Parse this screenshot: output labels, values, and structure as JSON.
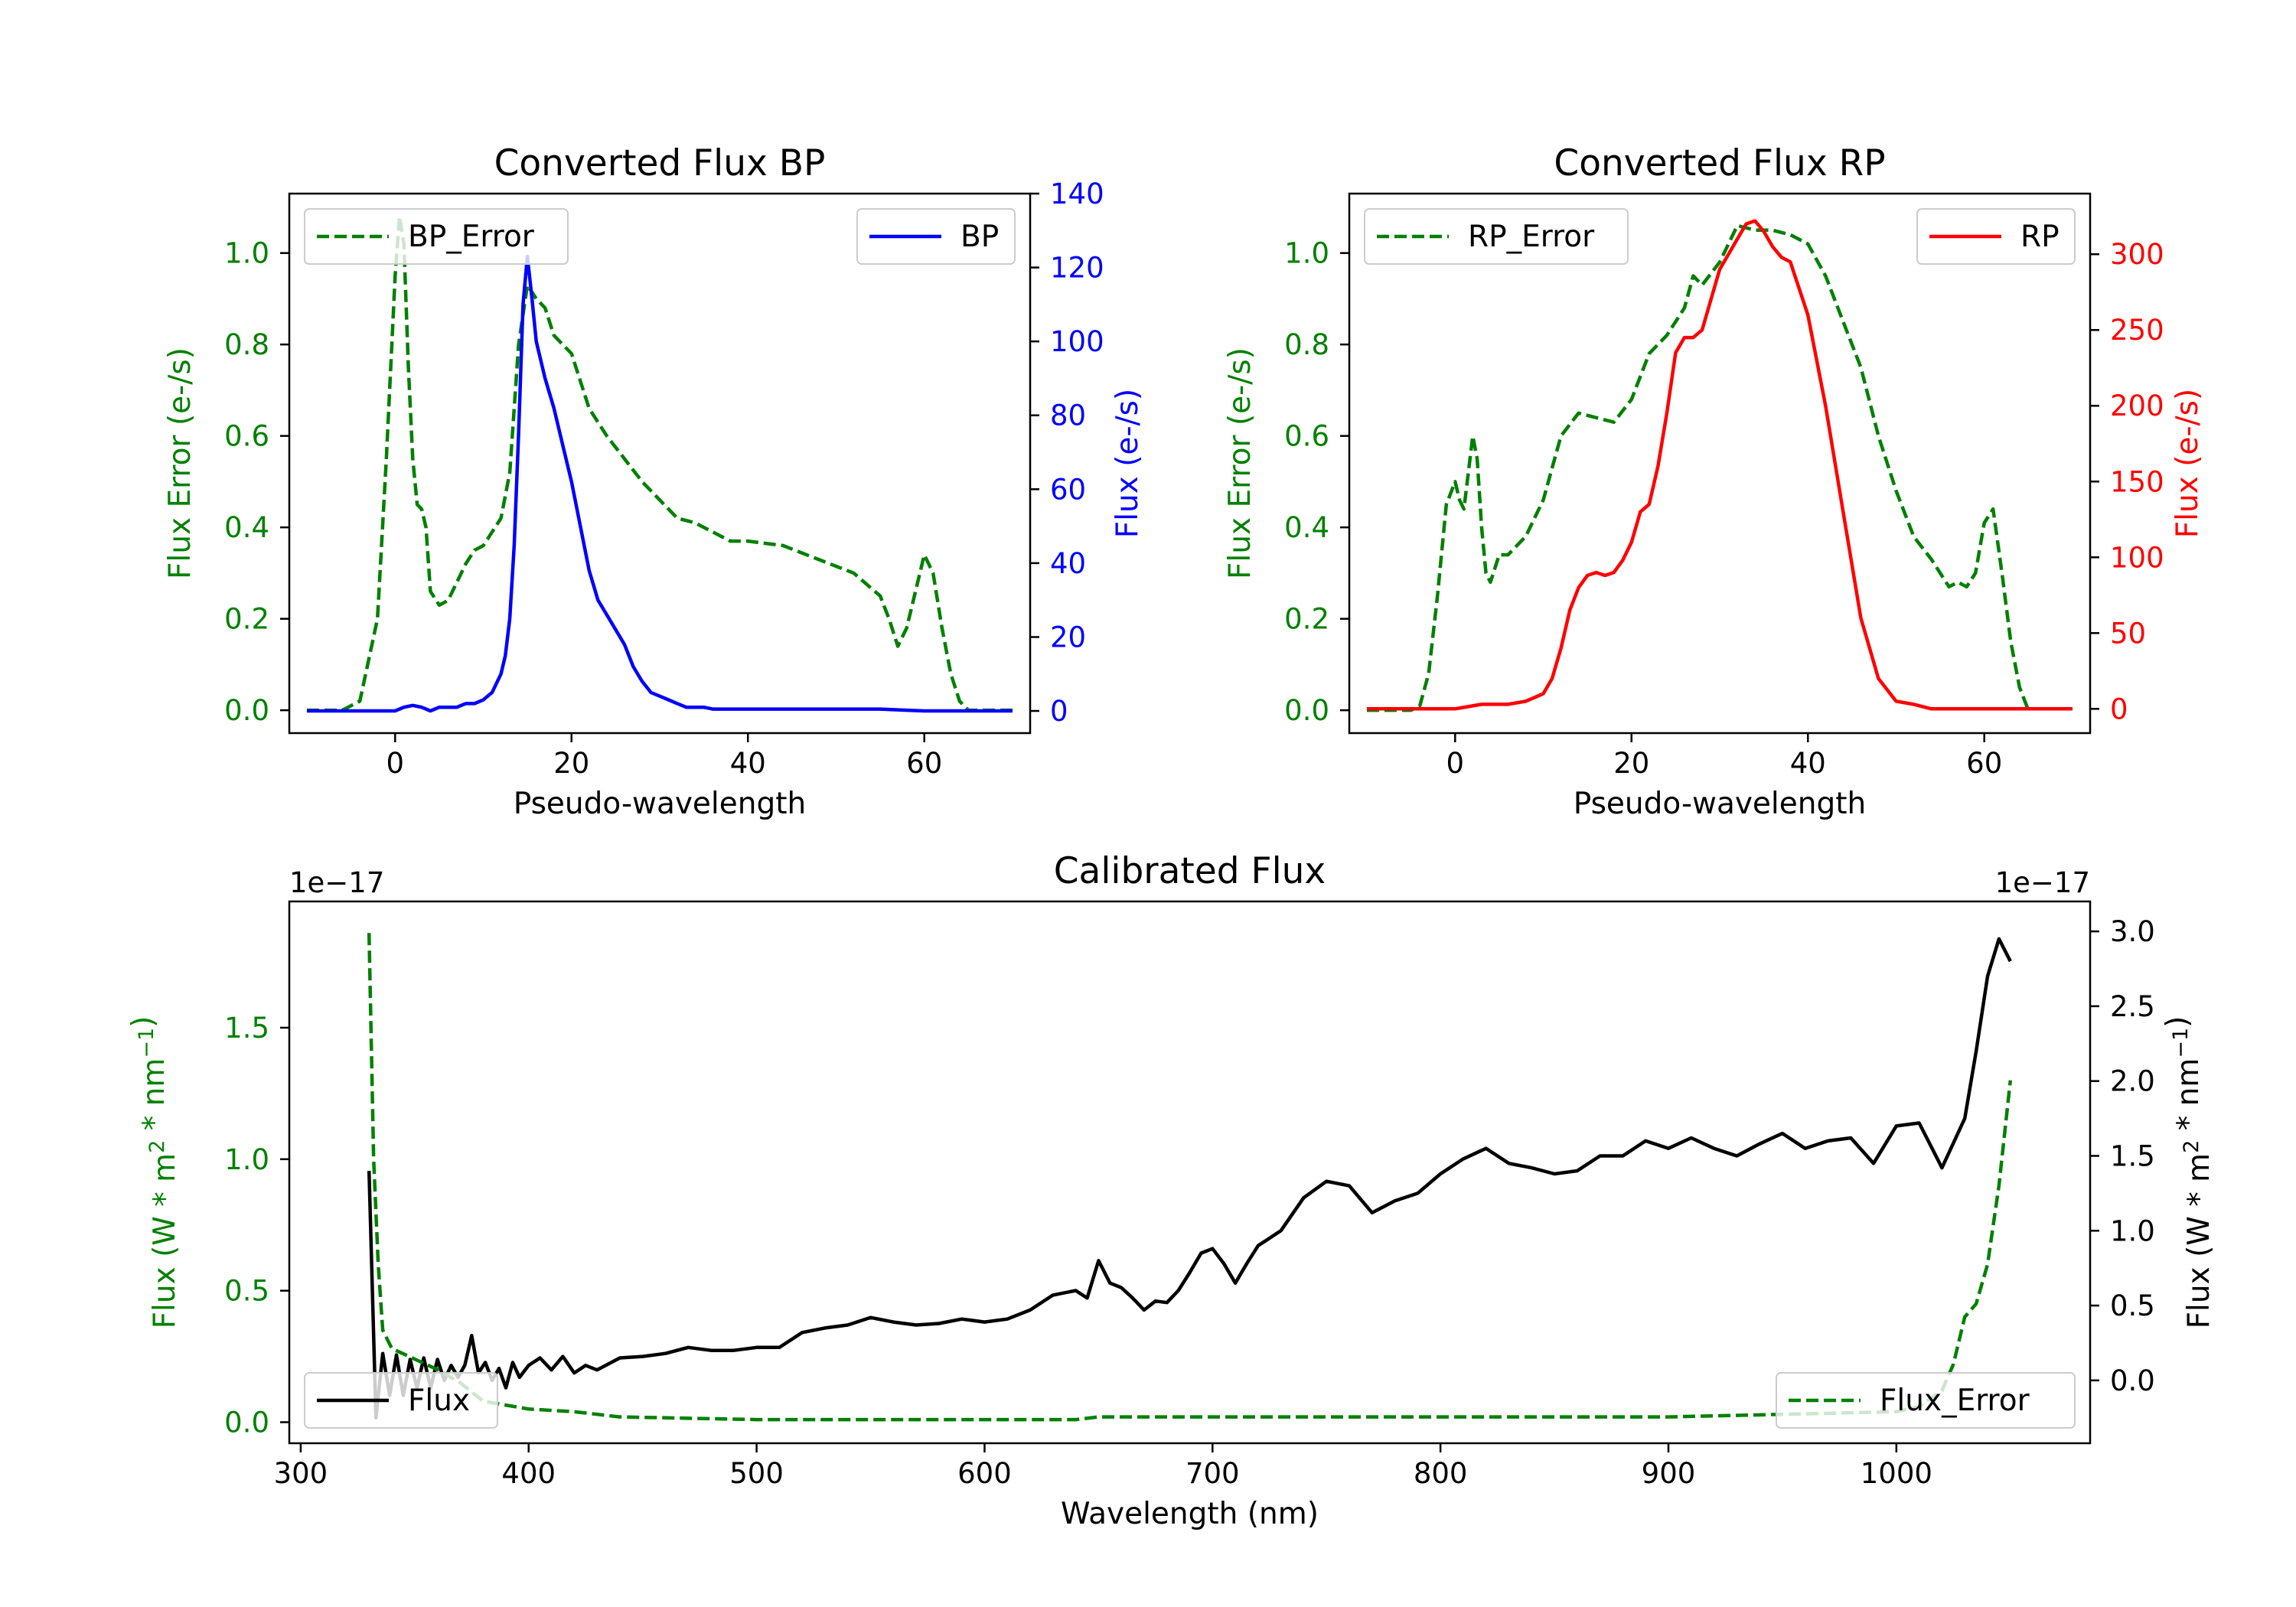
{
  "chart_data": [
    {
      "id": "bp",
      "type": "line",
      "title": "Converted Flux BP",
      "xlabel": "Pseudo-wavelength",
      "xlim": [
        -12,
        72
      ],
      "xticks": [
        0,
        20,
        40,
        60
      ],
      "left_axis": {
        "label": "Flux Error (e-/s)",
        "color": "#008000",
        "ylim": [
          -0.05,
          1.13
        ],
        "ticks": [
          "0.0",
          "0.2",
          "0.4",
          "0.6",
          "0.8",
          "1.0"
        ],
        "tick_values": [
          0,
          0.2,
          0.4,
          0.6,
          0.8,
          1.0
        ]
      },
      "right_axis": {
        "label": "Flux (e-/s)",
        "color": "#0000ff",
        "ylim": [
          -6,
          140
        ],
        "ticks": [
          "0",
          "20",
          "40",
          "60",
          "80",
          "100",
          "120",
          "140"
        ],
        "tick_values": [
          0,
          20,
          40,
          60,
          80,
          100,
          120,
          140
        ]
      },
      "series": [
        {
          "name": "BP_Error",
          "axis": "left",
          "color": "#008000",
          "dash": true,
          "legend_pos": "upper-left",
          "x": [
            -10,
            -6,
            -4,
            -2,
            -1,
            0,
            0.5,
            1,
            1.5,
            2,
            2.5,
            3,
            3.5,
            4,
            5,
            6,
            7,
            8,
            9,
            10,
            12,
            13,
            14,
            15,
            16,
            17,
            18,
            19,
            20,
            21,
            22,
            24,
            26,
            28,
            30,
            32,
            34,
            36,
            38,
            40,
            44,
            48,
            52,
            55,
            56,
            57,
            58,
            59,
            60,
            61,
            62,
            63,
            64,
            65,
            70
          ],
          "y": [
            0,
            0,
            0.02,
            0.2,
            0.55,
            0.95,
            1.08,
            1.02,
            0.75,
            0.55,
            0.45,
            0.44,
            0.4,
            0.26,
            0.23,
            0.24,
            0.28,
            0.32,
            0.35,
            0.36,
            0.42,
            0.52,
            0.8,
            0.93,
            0.9,
            0.88,
            0.82,
            0.8,
            0.78,
            0.72,
            0.66,
            0.6,
            0.55,
            0.5,
            0.46,
            0.42,
            0.41,
            0.39,
            0.37,
            0.37,
            0.36,
            0.33,
            0.3,
            0.25,
            0.2,
            0.14,
            0.18,
            0.26,
            0.34,
            0.3,
            0.18,
            0.08,
            0.02,
            0,
            0
          ]
        },
        {
          "name": "BP",
          "axis": "right",
          "color": "#0000ff",
          "dash": false,
          "legend_pos": "upper-right",
          "x": [
            -10,
            -5,
            -2,
            0,
            1,
            2,
            3,
            4,
            5,
            6,
            7,
            8,
            9,
            10,
            11,
            12,
            12.5,
            13,
            13.5,
            14,
            14.5,
            15,
            15.5,
            16,
            17,
            18,
            19,
            20,
            21,
            22,
            23,
            24,
            25,
            26,
            27,
            28,
            29,
            30,
            31,
            32,
            33,
            34,
            35,
            36,
            38,
            40,
            42,
            45,
            48,
            50,
            55,
            58,
            60,
            62,
            65,
            70
          ],
          "y": [
            0,
            0,
            0,
            0,
            1,
            1.5,
            1,
            0,
            1,
            1,
            1,
            2,
            2,
            3,
            5,
            10,
            15,
            25,
            45,
            75,
            110,
            123,
            112,
            100,
            90,
            82,
            72,
            62,
            50,
            38,
            30,
            26,
            22,
            18,
            12,
            8,
            5,
            4,
            3,
            2,
            1,
            1,
            1,
            0.5,
            0.5,
            0.5,
            0.5,
            0.5,
            0.5,
            0.5,
            0.5,
            0.2,
            0,
            0,
            0,
            0
          ]
        }
      ]
    },
    {
      "id": "rp",
      "type": "line",
      "title": "Converted Flux RP",
      "xlabel": "Pseudo-wavelength",
      "xlim": [
        -12,
        72
      ],
      "xticks": [
        0,
        20,
        40,
        60
      ],
      "left_axis": {
        "label": "Flux Error (e-/s)",
        "color": "#008000",
        "ylim": [
          -0.05,
          1.13
        ],
        "ticks": [
          "0.0",
          "0.2",
          "0.4",
          "0.6",
          "0.8",
          "1.0"
        ],
        "tick_values": [
          0,
          0.2,
          0.4,
          0.6,
          0.8,
          1.0
        ]
      },
      "right_axis": {
        "label": "Flux (e-/s)",
        "color": "#ff0000",
        "ylim": [
          -16,
          340
        ],
        "ticks": [
          "0",
          "50",
          "100",
          "150",
          "200",
          "250",
          "300"
        ],
        "tick_values": [
          0,
          50,
          100,
          150,
          200,
          250,
          300
        ]
      },
      "series": [
        {
          "name": "RP_Error",
          "axis": "left",
          "color": "#008000",
          "dash": true,
          "legend_pos": "upper-left",
          "x": [
            -10,
            -5,
            -4,
            -3,
            -2,
            -1,
            0,
            0.5,
            1,
            1.5,
            2,
            2.5,
            3,
            3.5,
            4,
            5,
            6,
            8,
            10,
            12,
            14,
            16,
            18,
            20,
            22,
            24,
            26,
            27,
            28,
            30,
            32,
            34,
            36,
            38,
            40,
            42,
            44,
            46,
            48,
            50,
            52,
            54,
            55,
            56,
            57,
            58,
            59,
            60,
            61,
            62,
            63,
            64,
            65
          ],
          "y": [
            0,
            0,
            0.01,
            0.08,
            0.25,
            0.45,
            0.5,
            0.46,
            0.44,
            0.52,
            0.6,
            0.55,
            0.4,
            0.3,
            0.28,
            0.34,
            0.34,
            0.38,
            0.46,
            0.6,
            0.65,
            0.64,
            0.63,
            0.68,
            0.78,
            0.82,
            0.88,
            0.95,
            0.93,
            0.98,
            1.06,
            1.05,
            1.05,
            1.04,
            1.02,
            0.95,
            0.85,
            0.75,
            0.6,
            0.48,
            0.38,
            0.33,
            0.3,
            0.27,
            0.28,
            0.27,
            0.3,
            0.41,
            0.44,
            0.3,
            0.15,
            0.05,
            0
          ]
        },
        {
          "name": "RP",
          "axis": "right",
          "color": "#ff0000",
          "dash": false,
          "legend_pos": "upper-right",
          "x": [
            -10,
            -5,
            0,
            3,
            6,
            8,
            10,
            11,
            12,
            13,
            14,
            15,
            16,
            17,
            18,
            19,
            20,
            21,
            22,
            23,
            24,
            25,
            26,
            27,
            28,
            29,
            30,
            31,
            32,
            33,
            34,
            35,
            36,
            37,
            38,
            40,
            42,
            44,
            46,
            48,
            50,
            52,
            54,
            56,
            58,
            60,
            65,
            70
          ],
          "y": [
            0,
            0,
            0,
            3,
            3,
            5,
            10,
            20,
            40,
            65,
            80,
            88,
            90,
            88,
            90,
            98,
            110,
            130,
            135,
            160,
            195,
            235,
            245,
            245,
            250,
            270,
            290,
            300,
            310,
            320,
            322,
            315,
            305,
            298,
            295,
            260,
            200,
            130,
            60,
            20,
            5,
            3,
            0,
            0,
            0,
            0,
            0,
            0
          ]
        }
      ]
    },
    {
      "id": "calibrated",
      "type": "line",
      "title": "Calibrated Flux",
      "xlabel": "Wavelength (nm)",
      "xlim": [
        295,
        1085
      ],
      "xticks": [
        300,
        400,
        500,
        600,
        700,
        800,
        900,
        1000
      ],
      "left_axis": {
        "label": "Flux (W * m^2 * nm^-1)",
        "color": "#008000",
        "scale_label": "1e−17",
        "ylim": [
          -0.08,
          1.98
        ],
        "ticks": [
          "0.0",
          "0.5",
          "1.0",
          "1.5"
        ],
        "tick_values": [
          0,
          0.5,
          1.0,
          1.5
        ]
      },
      "right_axis": {
        "label": "Flux (W * m^2 * nm^-1)",
        "color": "#000000",
        "scale_label": "1e−17",
        "ylim": [
          -0.42,
          3.2
        ],
        "ticks": [
          "0.0",
          "0.5",
          "1.0",
          "1.5",
          "2.0",
          "2.5",
          "3.0"
        ],
        "tick_values": [
          0,
          0.5,
          1.0,
          1.5,
          2.0,
          2.5,
          3.0
        ]
      },
      "series": [
        {
          "name": "Flux",
          "axis": "right",
          "color": "#000000",
          "dash": false,
          "legend_pos": "lower-left",
          "x": [
            330,
            333,
            336,
            339,
            342,
            345,
            348,
            351,
            354,
            357,
            360,
            363,
            366,
            369,
            372,
            375,
            378,
            381,
            384,
            387,
            390,
            393,
            396,
            400,
            405,
            410,
            415,
            420,
            425,
            430,
            440,
            450,
            460,
            470,
            480,
            490,
            500,
            510,
            520,
            530,
            540,
            550,
            560,
            570,
            580,
            590,
            600,
            610,
            620,
            630,
            640,
            645,
            650,
            655,
            660,
            665,
            670,
            675,
            680,
            685,
            690,
            695,
            700,
            705,
            710,
            715,
            720,
            730,
            740,
            750,
            760,
            770,
            780,
            790,
            800,
            810,
            820,
            830,
            840,
            850,
            860,
            870,
            880,
            890,
            900,
            910,
            920,
            930,
            940,
            950,
            960,
            970,
            980,
            990,
            1000,
            1010,
            1020,
            1030,
            1035,
            1040,
            1045,
            1050
          ],
          "y": [
            1.4,
            -0.25,
            0.18,
            -0.1,
            0.17,
            -0.1,
            0.14,
            -0.05,
            0.15,
            -0.05,
            0.14,
            0.0,
            0.1,
            0.02,
            0.1,
            0.3,
            0.05,
            0.12,
            0.0,
            0.08,
            -0.05,
            0.12,
            0.02,
            0.1,
            0.15,
            0.07,
            0.16,
            0.05,
            0.1,
            0.07,
            0.15,
            0.16,
            0.18,
            0.22,
            0.2,
            0.2,
            0.22,
            0.22,
            0.32,
            0.35,
            0.37,
            0.42,
            0.39,
            0.37,
            0.38,
            0.41,
            0.39,
            0.41,
            0.47,
            0.57,
            0.6,
            0.55,
            0.8,
            0.65,
            0.62,
            0.55,
            0.47,
            0.53,
            0.52,
            0.6,
            0.72,
            0.85,
            0.88,
            0.78,
            0.65,
            0.78,
            0.9,
            1.0,
            1.22,
            1.33,
            1.3,
            1.12,
            1.2,
            1.25,
            1.38,
            1.48,
            1.55,
            1.45,
            1.42,
            1.38,
            1.4,
            1.5,
            1.5,
            1.6,
            1.55,
            1.62,
            1.55,
            1.5,
            1.58,
            1.65,
            1.55,
            1.6,
            1.62,
            1.45,
            1.7,
            1.72,
            1.42,
            1.75,
            2.2,
            2.7,
            2.95,
            2.8
          ]
        },
        {
          "name": "Flux_Error",
          "axis": "left",
          "color": "#008000",
          "dash": true,
          "legend_pos": "lower-right",
          "x": [
            330,
            332,
            334,
            336,
            340,
            345,
            350,
            360,
            370,
            380,
            400,
            420,
            440,
            500,
            600,
            640,
            650,
            700,
            800,
            900,
            950,
            1000,
            1010,
            1020,
            1025,
            1030,
            1035,
            1040,
            1045,
            1050
          ],
          "y": [
            1.86,
            1.0,
            0.6,
            0.35,
            0.28,
            0.26,
            0.24,
            0.2,
            0.15,
            0.08,
            0.05,
            0.04,
            0.02,
            0.01,
            0.01,
            0.01,
            0.02,
            0.02,
            0.02,
            0.02,
            0.03,
            0.04,
            0.06,
            0.12,
            0.22,
            0.4,
            0.45,
            0.6,
            0.9,
            1.3
          ]
        }
      ]
    }
  ]
}
